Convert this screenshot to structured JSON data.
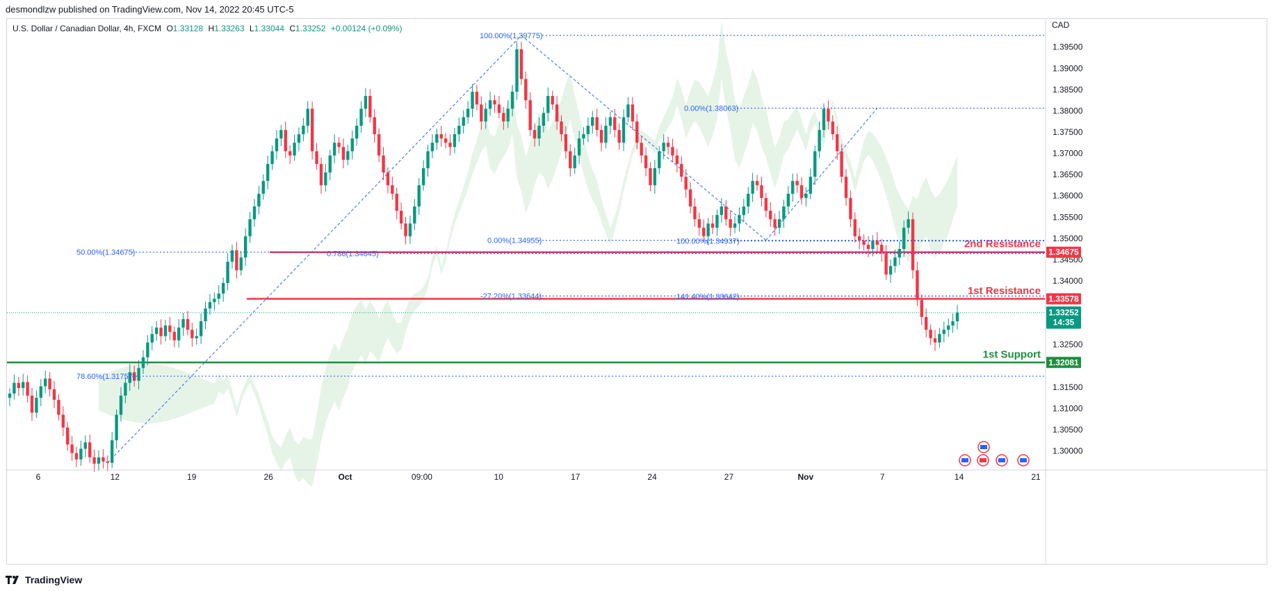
{
  "header": {
    "credit": "desmondlzw published on TradingView.com, Nov 14, 2022 20:45 UTC-5"
  },
  "legend": {
    "symbol": "U.S. Dollar / Canadian Dollar, 4h, FXCM",
    "open_label": "O",
    "open": "1.33128",
    "high_label": "H",
    "high": "1.33263",
    "low_label": "L",
    "low": "1.33044",
    "close_label": "C",
    "close": "1.33252",
    "change": "+0.00124 (+0.09%)"
  },
  "brand": {
    "name": "TradingView"
  },
  "colors": {
    "up": "#089981",
    "down": "#f23645",
    "fib": "#2962ff",
    "resistance": "#f23645",
    "support": "#1e8e3e",
    "cloud_green": "#c8e6c9",
    "cloud_red": "#ffcdd2"
  },
  "chart_data": {
    "type": "candlestick",
    "timeframe": "4h",
    "currency_label": "CAD",
    "ylim": [
      1.2955,
      1.4015
    ],
    "y_ticks": [
      "1.39500",
      "1.39000",
      "1.38500",
      "1.38000",
      "1.37500",
      "1.37000",
      "1.36500",
      "1.36000",
      "1.35500",
      "1.35000",
      "1.34500",
      "1.34000",
      "1.32500",
      "1.31500",
      "1.31000",
      "1.30500",
      "1.30000"
    ],
    "x_ticks": [
      "6",
      "12",
      "19",
      "26",
      "Oct",
      "09:00",
      "10",
      "17",
      "24",
      "27",
      "Nov",
      "7",
      "14",
      "21"
    ],
    "last_price": {
      "value": "1.33252",
      "countdown": "14:35"
    },
    "levels": [
      {
        "label": "2nd Resistance",
        "value": "1.34675",
        "kind": "resistance"
      },
      {
        "label": "1st Resistance",
        "value": "1.33578",
        "kind": "resistance"
      },
      {
        "label": "1st Support",
        "value": "1.32081",
        "kind": "support"
      }
    ],
    "fib_labels": [
      {
        "text": "100.00%(1.39775)",
        "value": 1.39775
      },
      {
        "text": "50.00%(1.34675)",
        "value": 1.34675
      },
      {
        "text": "78.60%(1.31757)",
        "value": 1.31757
      },
      {
        "text": "0.786(1.34645)",
        "value": 1.34645
      },
      {
        "text": "0.00%(1.38063)",
        "value": 1.38063
      },
      {
        "text": "0.00%(1.34955)",
        "value": 1.34955
      },
      {
        "text": "100.00%(1.34937)",
        "value": 1.34937
      },
      {
        "text": "-27.20%(1.33644)",
        "value": 1.33644
      },
      {
        "text": "141.40%(1.33642)",
        "value": 1.33642
      }
    ],
    "anchors": [
      {
        "name": "low-sep13",
        "value": 1.2972
      },
      {
        "name": "high-oct13",
        "value": 1.39775
      },
      {
        "name": "low-oct3",
        "value": 1.3505
      },
      {
        "name": "low-oct26",
        "value": 1.34955
      },
      {
        "name": "high-nov3",
        "value": 1.38063
      },
      {
        "name": "low-nov11",
        "value": 1.3225
      }
    ],
    "path_closes": [
      1.3135,
      1.316,
      1.3148,
      1.3162,
      1.313,
      1.309,
      1.3125,
      1.3152,
      1.317,
      1.3145,
      1.312,
      1.3085,
      1.3055,
      1.3015,
      1.2995,
      1.298,
      1.3005,
      1.302,
      1.2985,
      1.297,
      1.2985,
      1.2975,
      1.2972,
      1.3025,
      1.3085,
      1.313,
      1.316,
      1.3185,
      1.3165,
      1.3195,
      1.322,
      1.3255,
      1.3275,
      1.329,
      1.327,
      1.3295,
      1.328,
      1.326,
      1.329,
      1.331,
      1.3285,
      1.3265,
      1.327,
      1.3305,
      1.3335,
      1.335,
      1.3358,
      1.337,
      1.3395,
      1.3445,
      1.3472,
      1.3425,
      1.3455,
      1.3505,
      1.3545,
      1.3575,
      1.3605,
      1.3635,
      1.3675,
      1.3705,
      1.3735,
      1.3755,
      1.3705,
      1.3695,
      1.3725,
      1.3745,
      1.3765,
      1.3805,
      1.3705,
      1.3675,
      1.3625,
      1.3655,
      1.3695,
      1.3725,
      1.3715,
      1.3685,
      1.3705,
      1.3735,
      1.3765,
      1.3805,
      1.3835,
      1.3785,
      1.3745,
      1.3695,
      1.3655,
      1.3625,
      1.3605,
      1.3565,
      1.3535,
      1.3505,
      1.3535,
      1.3575,
      1.3625,
      1.3665,
      1.3705,
      1.3725,
      1.3745,
      1.3735,
      1.3725,
      1.3715,
      1.3745,
      1.3765,
      1.3785,
      1.3805,
      1.3845,
      1.3815,
      1.3775,
      1.3805,
      1.3825,
      1.3815,
      1.3795,
      1.3775,
      1.3805,
      1.3845,
      1.3945,
      1.3875,
      1.3825,
      1.3755,
      1.3735,
      1.3765,
      1.3795,
      1.3835,
      1.3815,
      1.3775,
      1.3745,
      1.3705,
      1.3665,
      1.3695,
      1.3735,
      1.3745,
      1.3765,
      1.3785,
      1.3755,
      1.3725,
      1.3765,
      1.3785,
      1.3755,
      1.3725,
      1.3785,
      1.3815,
      1.3775,
      1.3725,
      1.3695,
      1.3665,
      1.3625,
      1.3665,
      1.3705,
      1.3725,
      1.3715,
      1.3695,
      1.3675,
      1.3645,
      1.3615,
      1.3575,
      1.3545,
      1.3525,
      1.3505,
      1.3535,
      1.3525,
      1.3555,
      1.3575,
      1.3545,
      1.3525,
      1.3535,
      1.3555,
      1.3575,
      1.3605,
      1.3635,
      1.3625,
      1.3595,
      1.3565,
      1.3545,
      1.3525,
      1.3545,
      1.3575,
      1.3605,
      1.3635,
      1.3625,
      1.3595,
      1.3605,
      1.3645,
      1.3705,
      1.3755,
      1.3805,
      1.3775,
      1.3745,
      1.3705,
      1.3645,
      1.3595,
      1.3545,
      1.3505,
      1.3495,
      1.3485,
      1.3475,
      1.3495,
      1.3485,
      1.3465,
      1.3415,
      1.3435,
      1.3455,
      1.3475,
      1.3525,
      1.3545,
      1.3425,
      1.3355,
      1.3315,
      1.3285,
      1.3265,
      1.3255,
      1.3275,
      1.3285,
      1.3295,
      1.3305,
      1.33252
    ]
  }
}
